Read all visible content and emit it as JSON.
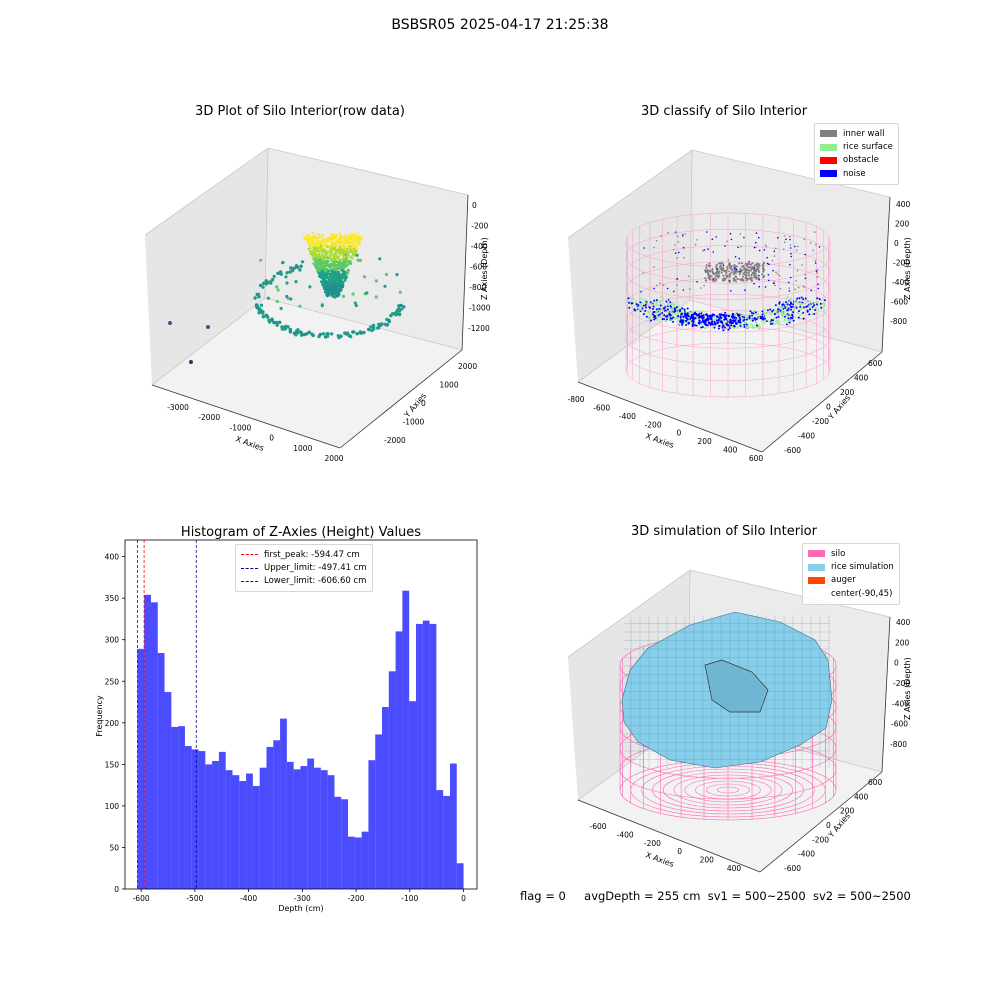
{
  "figure": {
    "suptitle": "BSBSR05 2025-04-17 21:25:38",
    "status_line": {
      "flag": "flag = 0",
      "avg_depth": "avgDepth = 255 cm",
      "sv1": "sv1 = 500~2500",
      "sv2": "sv2 = 500~2500"
    }
  },
  "raw_plot": {
    "title": "3D Plot of Silo Interior(row data)",
    "xlabel": "X Axies",
    "ylabel": "Y Axies",
    "zlabel": "Z Axies (Depth)",
    "x_ticks": [
      "-3000",
      "-2000",
      "-1000",
      "0",
      "1000",
      "2000"
    ],
    "y_ticks": [
      "-2000",
      "-1000",
      "0",
      "1000",
      "2000"
    ],
    "z_ticks": [
      "0",
      "-200",
      "-400",
      "-600",
      "-800",
      "-1000",
      "-1200"
    ],
    "colormap": "viridis"
  },
  "classify_plot": {
    "title": "3D classify of Silo Interior",
    "xlabel": "X Axies",
    "ylabel": "Y Axies",
    "zlabel": "Z Axies (Depth)",
    "x_ticks": [
      "-800",
      "-600",
      "-400",
      "-200",
      "0",
      "200",
      "400",
      "600"
    ],
    "y_ticks": [
      "-600",
      "-400",
      "-200",
      "0",
      "200",
      "400",
      "600"
    ],
    "z_ticks": [
      "400",
      "200",
      "0",
      "-200",
      "-400",
      "-600",
      "-800"
    ],
    "legend": [
      {
        "label": "inner wall",
        "color": "#808080"
      },
      {
        "label": "rice surface",
        "color": "#90ee90"
      },
      {
        "label": "obstacle",
        "color": "#ff0000"
      },
      {
        "label": "noise",
        "color": "#0000ff"
      }
    ]
  },
  "simulation_plot": {
    "title": "3D simulation of Silo Interior",
    "xlabel": "X Axies",
    "ylabel": "Y Axies",
    "zlabel": "Z Axies (Depth)",
    "x_ticks": [
      "-600",
      "-400",
      "-200",
      "0",
      "200",
      "400"
    ],
    "y_ticks": [
      "-600",
      "-400",
      "-200",
      "0",
      "200",
      "400",
      "600"
    ],
    "z_ticks": [
      "400",
      "200",
      "0",
      "-200",
      "-400",
      "-600",
      "-800"
    ],
    "legend": [
      {
        "label": "silo",
        "color": "#ff69b4"
      },
      {
        "label": "rice simulation",
        "color": "#87ceeb"
      },
      {
        "label": "auger",
        "color": "#ff4500"
      },
      {
        "label": "center(-90,45)",
        "color": "#ffffff"
      }
    ]
  },
  "chart_data": [
    {
      "type": "bar",
      "title": "Histogram of Z-Axies (Height) Values",
      "xlabel": "Depth (cm)",
      "ylabel": "Frequency",
      "xlim": [
        -630,
        25
      ],
      "ylim": [
        0,
        420
      ],
      "x_ticks": [
        -600,
        -500,
        -400,
        -300,
        -200,
        -100,
        0
      ],
      "y_ticks": [
        0,
        50,
        100,
        150,
        200,
        250,
        300,
        350,
        400
      ],
      "bin_range": [
        -607,
        0
      ],
      "bar_color": "#0000ff",
      "values": [
        289,
        354,
        345,
        284,
        237,
        195,
        196,
        172,
        168,
        166,
        150,
        154,
        165,
        143,
        137,
        130,
        139,
        124,
        146,
        171,
        179,
        205,
        153,
        144,
        148,
        157,
        146,
        143,
        137,
        111,
        108,
        63,
        62,
        69,
        155,
        186,
        219,
        262,
        310,
        359,
        226,
        319,
        323,
        319,
        119,
        112,
        151,
        31
      ],
      "vlines": [
        {
          "label": "first_peak: -594.47 cm",
          "x": -594.47,
          "color": "#ff0000"
        },
        {
          "label": "Upper_limit: -497.41 cm",
          "x": -497.41,
          "color": "#00008b"
        },
        {
          "label": "Lower_limit: -606.60 cm",
          "x": -606.6,
          "color": "#0000ff"
        }
      ]
    }
  ]
}
